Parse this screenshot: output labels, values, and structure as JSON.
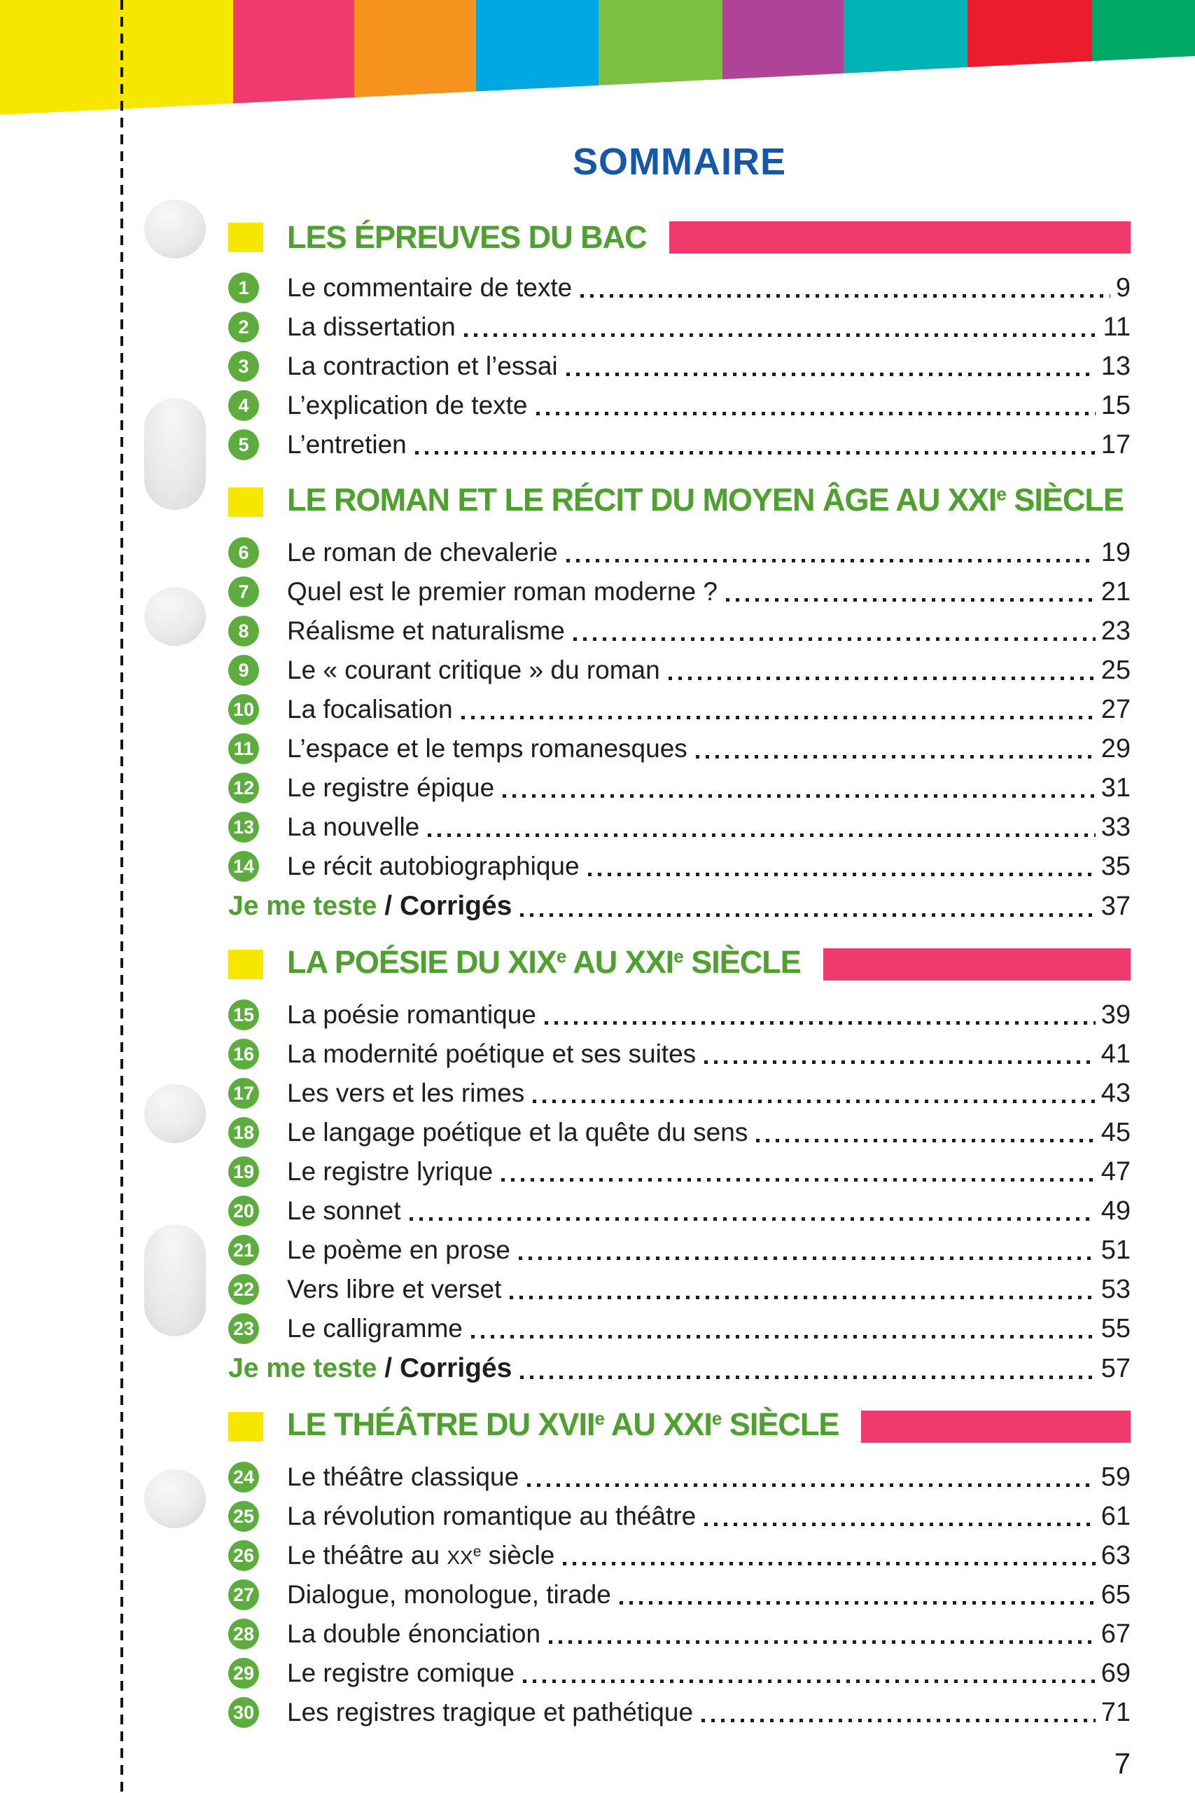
{
  "page": {
    "title": "SOMMAIRE",
    "number": "7"
  },
  "colors": {
    "title_blue": "#1458A7",
    "accent_green": "#4FA02F",
    "badge_green": "#5CAD3E",
    "bar_pink": "#EF3A6E",
    "square_yellow": "#F7E700",
    "text_dark": "#1E1E1E"
  },
  "banner": {
    "stripe_colors": [
      "#F7E700",
      "#EF3A6E",
      "#F6921E",
      "#00A7E1",
      "#7CC142",
      "#AE4397",
      "#00B3B5",
      "#ED1B2E",
      "#00A868"
    ]
  },
  "sections": [
    {
      "title": [
        {
          "t": "LES ÉPREUVES DU BAC"
        }
      ],
      "has_bar": true,
      "items": [
        {
          "num": "1",
          "label": "Le commentaire de texte",
          "page": "9"
        },
        {
          "num": "2",
          "label": "La dissertation",
          "page": "11"
        },
        {
          "num": "3",
          "label": "La contraction et l’essai",
          "page": "13"
        },
        {
          "num": "4",
          "label": "L’explication de texte",
          "page": "15"
        },
        {
          "num": "5",
          "label": "L’entretien",
          "page": "17"
        }
      ]
    },
    {
      "title": [
        {
          "t": "LE ROMAN ET LE RÉCIT DU MOYEN ÂGE AU XXI"
        },
        {
          "t": "e",
          "sup": true
        },
        {
          "t": " SIÈCLE"
        }
      ],
      "has_bar": false,
      "items": [
        {
          "num": "6",
          "label": "Le roman de chevalerie",
          "page": "19"
        },
        {
          "num": "7",
          "label": "Quel est le premier roman moderne ?",
          "page": "21"
        },
        {
          "num": "8",
          "label": "Réalisme et naturalisme",
          "page": "23"
        },
        {
          "num": "9",
          "label": "Le « courant critique » du roman",
          "page": "25"
        },
        {
          "num": "10",
          "label": "La focalisation",
          "page": "27"
        },
        {
          "num": "11",
          "label": "L’espace et le temps romanesques",
          "page": "29"
        },
        {
          "num": "12",
          "label": "Le registre épique",
          "page": "31"
        },
        {
          "num": "13",
          "label": "La nouvelle",
          "page": "33"
        },
        {
          "num": "14",
          "label": "Le récit autobiographique",
          "page": "35"
        }
      ],
      "je_me_teste": {
        "prefix": "Je me teste",
        "rest": " / Corrigés",
        "page": "37"
      }
    },
    {
      "title": [
        {
          "t": "LA POÉSIE DU XIX"
        },
        {
          "t": "e",
          "sup": true
        },
        {
          "t": " AU XXI"
        },
        {
          "t": "e",
          "sup": true
        },
        {
          "t": " SIÈCLE"
        }
      ],
      "has_bar": true,
      "items": [
        {
          "num": "15",
          "label": "La poésie romantique",
          "page": "39"
        },
        {
          "num": "16",
          "label": "La modernité poétique et ses suites",
          "page": "41"
        },
        {
          "num": "17",
          "label": "Les vers et les rimes",
          "page": "43"
        },
        {
          "num": "18",
          "label": "Le langage poétique et la quête du sens",
          "page": "45"
        },
        {
          "num": "19",
          "label": "Le registre lyrique",
          "page": "47"
        },
        {
          "num": "20",
          "label": "Le sonnet",
          "page": "49"
        },
        {
          "num": "21",
          "label": "Le poème en prose",
          "page": "51"
        },
        {
          "num": "22",
          "label": "Vers libre et verset",
          "page": "53"
        },
        {
          "num": "23",
          "label": "Le calligramme",
          "page": "55"
        }
      ],
      "je_me_teste": {
        "prefix": "Je me teste",
        "rest": " / Corrigés",
        "page": "57"
      }
    },
    {
      "title": [
        {
          "t": "LE THÉÂTRE DU XVII"
        },
        {
          "t": "e",
          "sup": true
        },
        {
          "t": " AU XXI"
        },
        {
          "t": "e",
          "sup": true
        },
        {
          "t": " SIÈCLE"
        }
      ],
      "has_bar": true,
      "items": [
        {
          "num": "24",
          "label": "Le théâtre classique",
          "page": "59"
        },
        {
          "num": "25",
          "label": "La révolution romantique au théâtre",
          "page": "61"
        },
        {
          "num": "26",
          "label": [
            {
              "t": "Le théâtre au "
            },
            {
              "t": "XX",
              "small": true
            },
            {
              "t": "e",
              "sup": true
            },
            {
              "t": " siècle"
            }
          ],
          "page": "63"
        },
        {
          "num": "27",
          "label": "Dialogue, monologue, tirade",
          "page": "65"
        },
        {
          "num": "28",
          "label": "La double énonciation",
          "page": "67"
        },
        {
          "num": "29",
          "label": "Le registre comique",
          "page": "69"
        },
        {
          "num": "30",
          "label": "Les registres tragique et pathétique",
          "page": "71"
        }
      ]
    }
  ]
}
